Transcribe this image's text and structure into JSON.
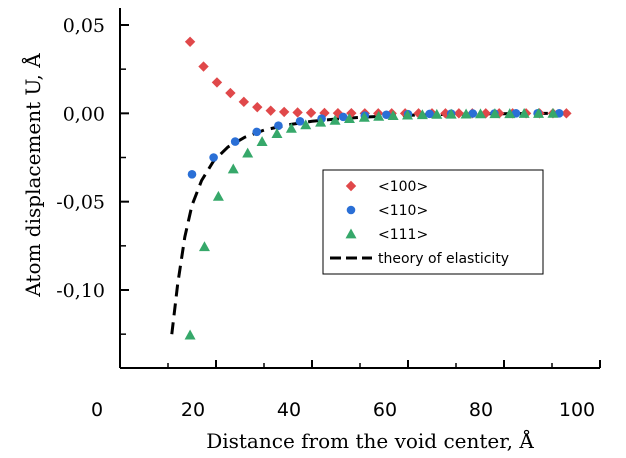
{
  "chart_data": {
    "type": "scatter",
    "xlabel": "Distance from the void center, Å",
    "ylabel": "Atom displacement U, Å",
    "xlim": [
      0,
      100
    ],
    "ylim": [
      -0.13,
      0.055
    ],
    "x_ticks": [
      {
        "value": 0,
        "label": "0"
      },
      {
        "value": 20,
        "label": "20"
      },
      {
        "value": 40,
        "label": "40"
      },
      {
        "value": 60,
        "label": "60"
      },
      {
        "value": 80,
        "label": "80"
      },
      {
        "value": 100,
        "label": "100"
      }
    ],
    "y_ticks": [
      {
        "value": 0.05,
        "label": "0,05"
      },
      {
        "value": 0.0,
        "label": "0,00"
      },
      {
        "value": -0.05,
        "label": "-0,05"
      },
      {
        "value": -0.1,
        "label": "-0,10"
      }
    ],
    "legend_position": "center-right",
    "series": [
      {
        "name": "<100>",
        "marker": "diamond",
        "color": "#e0484a",
        "points": [
          [
            14.6,
            0.0405
          ],
          [
            17.4,
            0.0265
          ],
          [
            20.2,
            0.0175
          ],
          [
            23.0,
            0.0115
          ],
          [
            25.8,
            0.0065
          ],
          [
            28.6,
            0.0035
          ],
          [
            31.4,
            0.0015
          ],
          [
            34.2,
            0.0008
          ],
          [
            37.0,
            0.0005
          ],
          [
            39.8,
            0.0003
          ],
          [
            42.6,
            0.0002
          ],
          [
            45.4,
            0.0001
          ],
          [
            48.2,
            0.0001
          ],
          [
            51.0,
            0.0
          ],
          [
            53.8,
            0.0
          ],
          [
            56.6,
            0.0
          ],
          [
            59.4,
            0.0
          ],
          [
            62.2,
            0.0
          ],
          [
            65.0,
            0.0
          ],
          [
            67.8,
            0.0
          ],
          [
            70.6,
            0.0
          ],
          [
            73.4,
            0.0
          ],
          [
            76.2,
            0.0
          ],
          [
            79.0,
            0.0
          ],
          [
            81.8,
            0.0
          ],
          [
            84.6,
            0.0
          ],
          [
            87.4,
            0.0
          ],
          [
            90.2,
            0.0
          ],
          [
            93.0,
            0.0
          ]
        ]
      },
      {
        "name": "<110>",
        "marker": "circle",
        "color": "#2a6fd6",
        "points": [
          [
            15.0,
            -0.0345
          ],
          [
            19.5,
            -0.025
          ],
          [
            24.0,
            -0.016
          ],
          [
            28.5,
            -0.0105
          ],
          [
            33.0,
            -0.007
          ],
          [
            37.5,
            -0.0045
          ],
          [
            42.0,
            -0.003
          ],
          [
            46.5,
            -0.002
          ],
          [
            51.0,
            -0.0013
          ],
          [
            55.5,
            -0.0008
          ],
          [
            60.0,
            -0.0005
          ],
          [
            64.5,
            -0.0003
          ],
          [
            69.0,
            -0.0002
          ],
          [
            73.5,
            -0.0001
          ],
          [
            78.0,
            -0.0001
          ],
          [
            82.5,
            0.0
          ],
          [
            87.0,
            0.0
          ],
          [
            91.5,
            0.0
          ]
        ]
      },
      {
        "name": "<111>",
        "marker": "triangle",
        "color": "#36a86a",
        "points": [
          [
            14.6,
            -0.1255
          ],
          [
            17.6,
            -0.0755
          ],
          [
            20.5,
            -0.047
          ],
          [
            23.6,
            -0.0315
          ],
          [
            26.6,
            -0.0225
          ],
          [
            29.6,
            -0.016
          ],
          [
            32.7,
            -0.0115
          ],
          [
            35.7,
            -0.0085
          ],
          [
            38.7,
            -0.0065
          ],
          [
            41.8,
            -0.005
          ],
          [
            44.8,
            -0.004
          ],
          [
            47.8,
            -0.003
          ],
          [
            50.9,
            -0.0023
          ],
          [
            53.9,
            -0.0017
          ],
          [
            56.9,
            -0.0013
          ],
          [
            59.9,
            -0.001
          ],
          [
            63.0,
            -0.0008
          ],
          [
            66.0,
            -0.0006
          ],
          [
            69.0,
            -0.0005
          ],
          [
            72.1,
            -0.0004
          ],
          [
            75.1,
            -0.0003
          ],
          [
            78.1,
            -0.0002
          ],
          [
            81.2,
            -0.0002
          ],
          [
            84.2,
            -0.0001
          ],
          [
            87.2,
            -0.0001
          ],
          [
            90.2,
            0.0
          ]
        ]
      },
      {
        "name": "theory of elasticity",
        "marker": "dashed-line",
        "color": "#000000",
        "points": [
          [
            10.8,
            -0.125
          ],
          [
            12.0,
            -0.097
          ],
          [
            13.5,
            -0.07
          ],
          [
            15.0,
            -0.052
          ],
          [
            17.0,
            -0.038
          ],
          [
            19.5,
            -0.027
          ],
          [
            22.5,
            -0.019
          ],
          [
            26.0,
            -0.0135
          ],
          [
            30.0,
            -0.0095
          ],
          [
            35.0,
            -0.0065
          ],
          [
            40.0,
            -0.0045
          ],
          [
            45.0,
            -0.0032
          ],
          [
            50.0,
            -0.0023
          ],
          [
            55.0,
            -0.0016
          ],
          [
            60.0,
            -0.0011
          ],
          [
            65.0,
            -0.0008
          ],
          [
            70.0,
            -0.0005
          ],
          [
            75.0,
            -0.0003
          ],
          [
            80.0,
            -0.0002
          ],
          [
            85.0,
            -0.0001
          ],
          [
            90.0,
            0.0
          ]
        ]
      }
    ]
  }
}
